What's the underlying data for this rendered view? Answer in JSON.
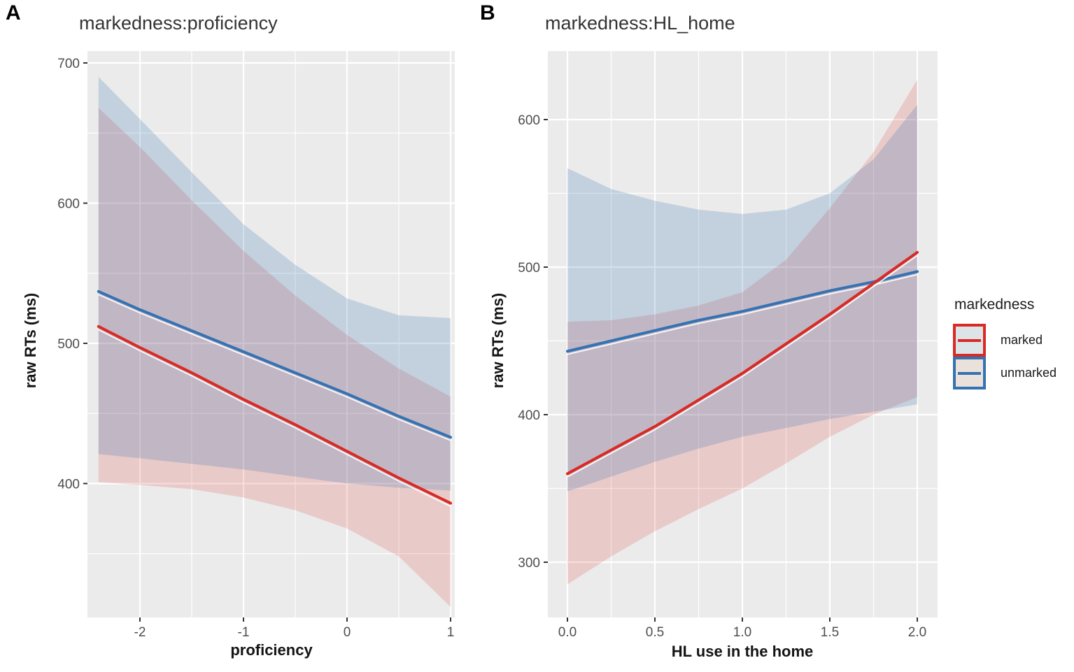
{
  "figure": {
    "panel_a_label": "A",
    "panel_b_label": "B",
    "background": "#ffffff",
    "panel_background": "#EBEBEB",
    "gridline_color": "#ffffff",
    "tick_text_color": "#4d4d4d"
  },
  "legend": {
    "title": "markedness",
    "items": [
      {
        "label": "marked",
        "color": "#D92A23",
        "key_fill": "#DCE4E7"
      },
      {
        "label": "unmarked",
        "color": "#3572B2",
        "key_fill": "#EAE1DB"
      }
    ]
  },
  "chart_data": [
    {
      "panel": "A",
      "type": "line",
      "title": "markedness:proficiency",
      "xlabel": "proficiency",
      "ylabel": "raw RTs (ms)",
      "legend_position": "none",
      "grid": true,
      "xlim": [
        -2.51,
        1.04
      ],
      "ylim": [
        303,
        708
      ],
      "x_ticks": [
        -2,
        -1,
        0,
        1
      ],
      "x_tick_labels": [
        "-2",
        "-1",
        "0",
        "1"
      ],
      "x_minor_ticks": [
        -1.5,
        -0.5,
        0.5
      ],
      "y_ticks": [
        700,
        600,
        500,
        400
      ],
      "y_tick_labels": [
        "700",
        "600",
        "500",
        "400"
      ],
      "y_minor_ticks": [
        350,
        450,
        550,
        650
      ],
      "x": [
        -2.4,
        -2,
        -1.5,
        -1,
        -0.5,
        0,
        0.5,
        1
      ],
      "series": [
        {
          "name": "marked",
          "color": "#D92A23",
          "values": [
            512,
            497,
            479,
            460,
            442,
            423,
            404,
            386
          ],
          "ci_upper": [
            668,
            640,
            602,
            566,
            534,
            506,
            482,
            462
          ],
          "ci_lower": [
            401,
            399,
            396,
            390,
            381,
            368,
            348,
            312
          ]
        },
        {
          "name": "unmarked",
          "color": "#3572B2",
          "values": [
            537,
            524,
            509,
            494,
            479,
            464,
            448,
            433
          ],
          "ci_upper": [
            690,
            660,
            622,
            585,
            556,
            532,
            520,
            518
          ],
          "ci_lower": [
            421,
            418,
            414,
            410,
            405,
            400,
            397,
            395
          ]
        }
      ]
    },
    {
      "panel": "B",
      "type": "line",
      "title": "markedness:HL_home",
      "xlabel": "HL use in the home",
      "ylabel": "raw RTs (ms)",
      "legend_position": "right",
      "grid": true,
      "xlim": [
        -0.11,
        2.12
      ],
      "ylim": [
        263,
        646
      ],
      "x_ticks": [
        0,
        0.5,
        1,
        1.5,
        2
      ],
      "x_tick_labels": [
        "0.0",
        "0.5",
        "1.0",
        "1.5",
        "2.0"
      ],
      "x_minor_ticks": [
        0.25,
        0.75,
        1.25,
        1.75
      ],
      "y_ticks": [
        600,
        500,
        400,
        300
      ],
      "y_tick_labels": [
        "600",
        "500",
        "400",
        "300"
      ],
      "y_minor_ticks": [
        350,
        450,
        550
      ],
      "x": [
        0,
        0.25,
        0.5,
        0.75,
        1,
        1.25,
        1.5,
        1.75,
        2
      ],
      "series": [
        {
          "name": "marked",
          "color": "#D92A23",
          "values": [
            360,
            376,
            392,
            410,
            428,
            448,
            468,
            489,
            510
          ],
          "ci_upper": [
            463,
            464,
            468,
            474,
            483,
            505,
            540,
            578,
            627
          ],
          "ci_lower": [
            285,
            304,
            321,
            336,
            350,
            367,
            385,
            400,
            412
          ]
        },
        {
          "name": "unmarked",
          "color": "#3572B2",
          "values": [
            443,
            450,
            457,
            464,
            470,
            477,
            484,
            490,
            497
          ],
          "ci_upper": [
            567,
            553,
            545,
            539,
            536,
            539,
            550,
            573,
            610
          ],
          "ci_lower": [
            348,
            358,
            368,
            377,
            385,
            391,
            397,
            402,
            407
          ]
        }
      ]
    }
  ]
}
